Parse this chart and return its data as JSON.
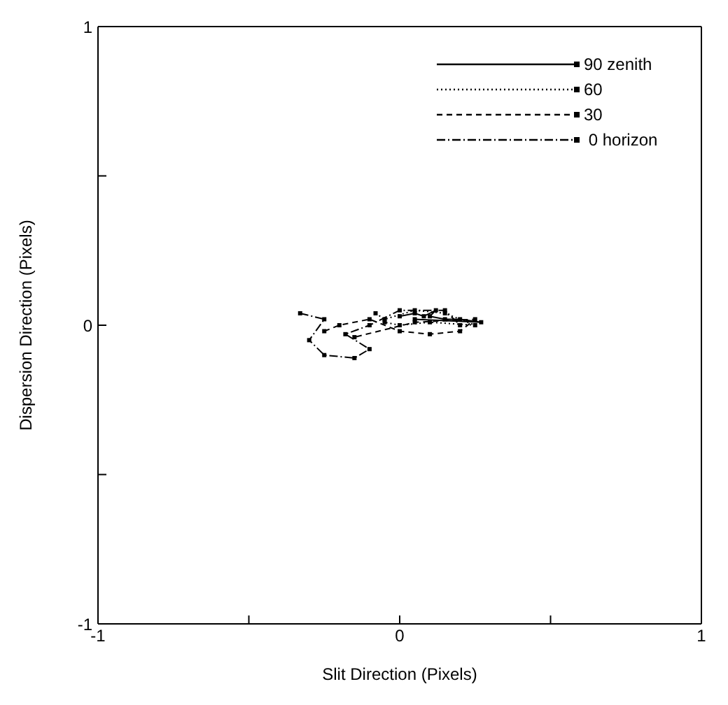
{
  "chart_data": {
    "type": "line",
    "xlabel": "Slit Direction (Pixels)",
    "ylabel": "Dispersion Direction (Pixels)",
    "xlim": [
      -1,
      1
    ],
    "ylim": [
      -1,
      1
    ],
    "xticks": [
      -1,
      {
        "value": -0.5,
        "label": null
      },
      0,
      {
        "value": 0.5,
        "label": null
      },
      1
    ],
    "yticks": [
      -1,
      {
        "value": -0.5,
        "label": null
      },
      0,
      {
        "value": 0.5,
        "label": null
      },
      1
    ],
    "grid": false,
    "legend": "top right",
    "marker": "square",
    "series": [
      {
        "name": "90 zenith",
        "color": "#000000",
        "line_style": "solid",
        "x": [
          0,
          0.05,
          0.08,
          0.12,
          0.1,
          0.15,
          0.2,
          0.27,
          0.05
        ],
        "values": [
          0.03,
          0.04,
          0.03,
          0.05,
          0.03,
          0.02,
          0.02,
          0.01,
          0.02
        ]
      },
      {
        "name": "60",
        "color": "#000000",
        "line_style": "dotted",
        "x": [
          -0.08,
          -0.05,
          0.05,
          0.15,
          0.25,
          0.1,
          0,
          -0.05
        ],
        "values": [
          0.04,
          0.02,
          0.05,
          0.04,
          0,
          0.01,
          0,
          0.01
        ]
      },
      {
        "name": "30",
        "color": "#000000",
        "line_style": "dashed",
        "x": [
          -0.25,
          -0.2,
          -0.1,
          0,
          0.1,
          0.2,
          0.25,
          0.05,
          -0.15
        ],
        "values": [
          -0.02,
          0,
          0.02,
          -0.02,
          -0.03,
          -0.02,
          0.02,
          0.01,
          -0.04
        ]
      },
      {
        "name": " 0 horizon",
        "color": "#000000",
        "line_style": "dashdot",
        "x": [
          -0.33,
          -0.25,
          -0.3,
          -0.25,
          -0.15,
          -0.1,
          -0.18,
          -0.1,
          0,
          0.15,
          0.2
        ],
        "values": [
          0.04,
          0.02,
          -0.05,
          -0.1,
          -0.11,
          -0.08,
          -0.03,
          0,
          0.05,
          0.05,
          0
        ]
      }
    ]
  }
}
